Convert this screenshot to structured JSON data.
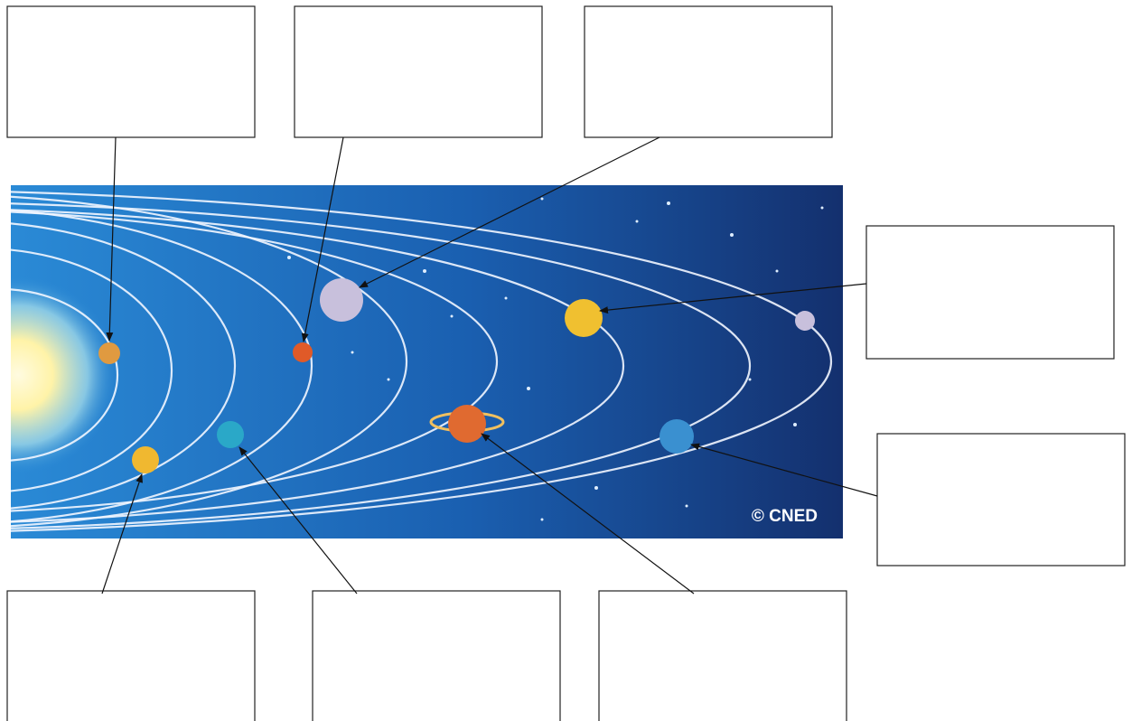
{
  "image": {
    "credit": "© CNED"
  }
}
